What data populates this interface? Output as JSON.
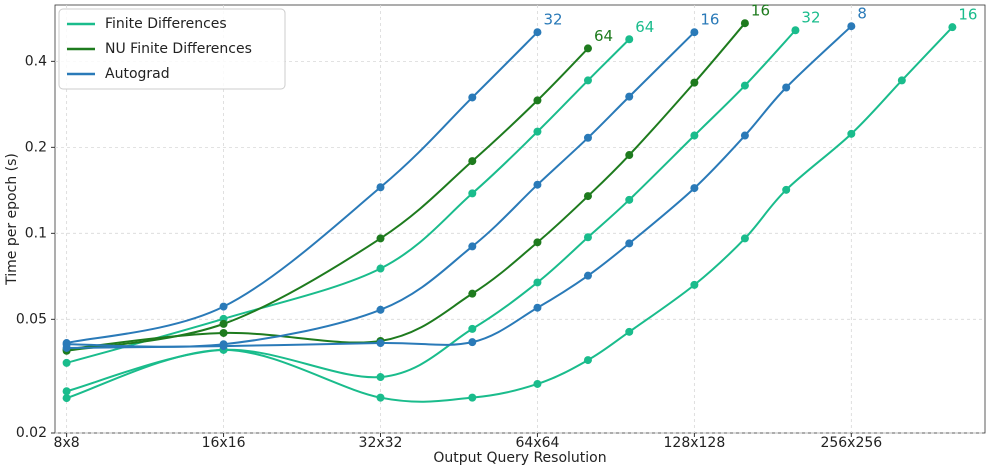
{
  "chart_data": {
    "type": "line",
    "xlabel": "Output Query Resolution",
    "ylabel": "Time per epoch (s)",
    "xscale": "log2",
    "yscale": "log",
    "grid": true,
    "legend": "upper left",
    "xlim": [
      7.6,
      462
    ],
    "ylim": [
      0.02,
      0.63
    ],
    "xticks": [
      {
        "value": 8,
        "label": "8x8"
      },
      {
        "value": 16,
        "label": "16x16"
      },
      {
        "value": 32,
        "label": "32x32"
      },
      {
        "value": 64,
        "label": "64x64"
      },
      {
        "value": 128,
        "label": "128x128"
      },
      {
        "value": 256,
        "label": "256x256"
      }
    ],
    "yticks": [
      0.02,
      0.05,
      0.1,
      0.2,
      0.4
    ],
    "series": [
      {
        "name": "Finite Differences",
        "color": "#1abc8c",
        "label": "64",
        "x": [
          8,
          16,
          32,
          48,
          64,
          80,
          96
        ],
        "values": [
          0.0352,
          0.0502,
          0.0753,
          0.138,
          0.227,
          0.343,
          0.478
        ]
      },
      {
        "name": "Finite Differences",
        "color": "#1abc8c",
        "label": "32",
        "x": [
          8,
          16,
          32,
          48,
          64,
          80,
          96,
          128,
          160,
          200
        ],
        "values": [
          0.028,
          0.0391,
          0.0314,
          0.0463,
          0.0673,
          0.0969,
          0.131,
          0.22,
          0.329,
          0.514
        ]
      },
      {
        "name": "Finite Differences",
        "color": "#1abc8c",
        "label": "16",
        "x": [
          8,
          16,
          32,
          48,
          64,
          80,
          96,
          128,
          160,
          192,
          256,
          320,
          400
        ],
        "values": [
          0.0265,
          0.0391,
          0.0266,
          0.0266,
          0.0297,
          0.036,
          0.0452,
          0.066,
          0.096,
          0.142,
          0.223,
          0.343,
          0.527
        ]
      },
      {
        "name": "NU Finite Differences",
        "color": "#1e7b1e",
        "label": "64",
        "x": [
          8,
          16,
          32,
          48,
          64,
          80
        ],
        "values": [
          0.0388,
          0.0482,
          0.096,
          0.179,
          0.292,
          0.444
        ]
      },
      {
        "name": "NU Finite Differences",
        "color": "#1e7b1e",
        "label": "16",
        "x": [
          8,
          16,
          32,
          48,
          64,
          80,
          96,
          128,
          160
        ],
        "values": [
          0.0393,
          0.0448,
          0.042,
          0.0615,
          0.093,
          0.135,
          0.188,
          0.337,
          0.544
        ]
      },
      {
        "name": "Autograd",
        "color": "#2a7ab8",
        "label": "32",
        "x": [
          8,
          16,
          32,
          48,
          64
        ],
        "values": [
          0.0413,
          0.0554,
          0.145,
          0.299,
          0.506
        ]
      },
      {
        "name": "Autograd",
        "color": "#2a7ab8",
        "label": "16",
        "x": [
          8,
          16,
          32,
          48,
          64,
          80,
          96,
          128
        ],
        "values": [
          0.0409,
          0.0409,
          0.054,
          0.09,
          0.148,
          0.216,
          0.301,
          0.506
        ]
      },
      {
        "name": "Autograd",
        "color": "#2a7ab8",
        "label": "8",
        "x": [
          8,
          16,
          32,
          48,
          64,
          80,
          96,
          128,
          160,
          192,
          256
        ],
        "values": [
          0.0397,
          0.0403,
          0.0413,
          0.0416,
          0.0549,
          0.0711,
          0.0922,
          0.144,
          0.22,
          0.324,
          0.531
        ]
      }
    ]
  }
}
